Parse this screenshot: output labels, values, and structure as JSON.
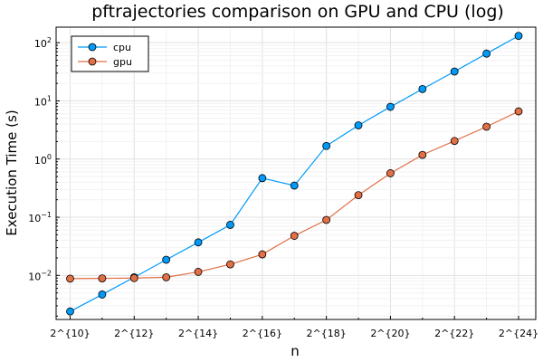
{
  "chart_data": {
    "type": "line",
    "title": "pftrajectories comparison on GPU and CPU (log)",
    "xlabel": "n",
    "ylabel": "Execution Time (s)",
    "x_scale": "log2",
    "y_scale": "log10",
    "x": [
      "2^{10}",
      "2^{11}",
      "2^{12}",
      "2^{13}",
      "2^{14}",
      "2^{15}",
      "2^{16}",
      "2^{17}",
      "2^{18}",
      "2^{19}",
      "2^{20}",
      "2^{21}",
      "2^{22}",
      "2^{23}",
      "2^{24}"
    ],
    "x_ticks": [
      "2^{10}",
      "2^{12}",
      "2^{14}",
      "2^{16}",
      "2^{18}",
      "2^{20}",
      "2^{22}",
      "2^{24}"
    ],
    "y_ticks": [
      {
        "value": 0.01,
        "base": "10",
        "exp": "−2"
      },
      {
        "value": 0.1,
        "base": "10",
        "exp": "−1"
      },
      {
        "value": 1,
        "base": "10",
        "exp": "0"
      },
      {
        "value": 10,
        "base": "10",
        "exp": "1"
      },
      {
        "value": 100,
        "base": "10",
        "exp": "2"
      }
    ],
    "series": [
      {
        "name": "cpu",
        "color": "#009af9",
        "values": [
          0.0024,
          0.0047,
          0.0093,
          0.0186,
          0.037,
          0.074,
          0.47,
          0.35,
          1.68,
          3.8,
          7.9,
          16,
          32,
          65,
          131
        ]
      },
      {
        "name": "gpu",
        "color": "#e26f46",
        "values": [
          0.0088,
          0.0089,
          0.009,
          0.0093,
          0.0115,
          0.0155,
          0.023,
          0.048,
          0.09,
          0.24,
          0.57,
          1.18,
          2.05,
          3.6,
          6.6
        ]
      }
    ],
    "grid": true,
    "legend_position": "top-left"
  }
}
